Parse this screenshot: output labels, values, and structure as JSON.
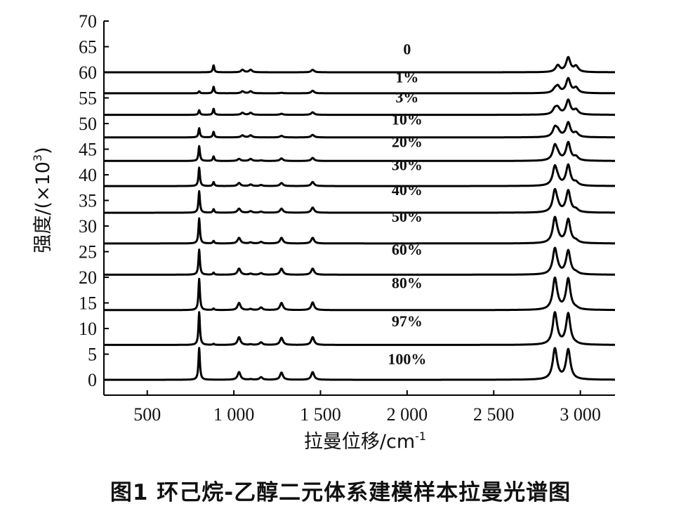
{
  "figure_caption": "图1   环己烷-乙醇二元体系建模样本拉曼光谱图",
  "chart_data": {
    "type": "line",
    "xlabel_main": "拉曼位移/cm",
    "xlabel_sup": "-1",
    "ylabel_main": "强度/(×10",
    "ylabel_sup": "3",
    "ylabel_close": ")",
    "xlim": [
      250,
      3200
    ],
    "ylim": [
      -3,
      70
    ],
    "x_ticks": [
      500,
      1000,
      1500,
      2000,
      2500,
      3000
    ],
    "x_tick_labels": [
      "500",
      "1 000",
      "1 500",
      "2 000",
      "2 500",
      "3 000"
    ],
    "y_ticks": [
      0,
      5,
      10,
      15,
      20,
      25,
      30,
      35,
      40,
      45,
      50,
      55,
      60,
      65,
      70
    ],
    "y_tick_labels": [
      "0",
      "5",
      "10",
      "15",
      "20",
      "25",
      "30",
      "35",
      "40",
      "45",
      "50",
      "55",
      "60",
      "65",
      "70"
    ],
    "series": [
      {
        "name": "0",
        "baseline": 60.0,
        "label_x": 2000,
        "label_y": 63.5,
        "peaks": [
          [
            800,
            0.0
          ],
          [
            883,
            1.4
          ],
          [
            1050,
            0.5
          ],
          [
            1097,
            0.5
          ],
          [
            1275,
            0.0
          ],
          [
            1455,
            0.5
          ],
          [
            2870,
            1.3
          ],
          [
            2930,
            2.8
          ],
          [
            2975,
            1.1
          ]
        ]
      },
      {
        "name": "1%",
        "baseline": 55.9,
        "label_x": 2000,
        "label_y": 58.0,
        "peaks": [
          [
            800,
            0.4
          ],
          [
            883,
            1.3
          ],
          [
            1050,
            0.4
          ],
          [
            1097,
            0.4
          ],
          [
            1275,
            0.1
          ],
          [
            1455,
            0.5
          ],
          [
            2853,
            0.6
          ],
          [
            2870,
            1.2
          ],
          [
            2930,
            2.8
          ],
          [
            2975,
            1.0
          ]
        ]
      },
      {
        "name": "3%",
        "baseline": 51.7,
        "label_x": 2000,
        "label_y": 54.1,
        "peaks": [
          [
            800,
            0.9
          ],
          [
            883,
            1.2
          ],
          [
            1050,
            0.4
          ],
          [
            1097,
            0.4
          ],
          [
            1275,
            0.2
          ],
          [
            1455,
            0.5
          ],
          [
            2853,
            1.0
          ],
          [
            2870,
            1.1
          ],
          [
            2930,
            2.8
          ],
          [
            2975,
            0.9
          ]
        ]
      },
      {
        "name": "10%",
        "baseline": 47.3,
        "label_x": 2000,
        "label_y": 49.8,
        "peaks": [
          [
            800,
            1.8
          ],
          [
            883,
            1.1
          ],
          [
            1050,
            0.4
          ],
          [
            1097,
            0.4
          ],
          [
            1275,
            0.3
          ],
          [
            1455,
            0.5
          ],
          [
            2853,
            1.7
          ],
          [
            2870,
            1.0
          ],
          [
            2930,
            2.8
          ],
          [
            2975,
            0.8
          ]
        ]
      },
      {
        "name": "20%",
        "baseline": 42.7,
        "label_x": 2000,
        "label_y": 45.4,
        "peaks": [
          [
            800,
            2.9
          ],
          [
            883,
            0.9
          ],
          [
            1030,
            0.4
          ],
          [
            1097,
            0.4
          ],
          [
            1157,
            0.1
          ],
          [
            1275,
            0.5
          ],
          [
            1455,
            0.6
          ],
          [
            2853,
            2.8
          ],
          [
            2870,
            0.8
          ],
          [
            2930,
            3.5
          ],
          [
            2975,
            0.7
          ]
        ]
      },
      {
        "name": "30%",
        "baseline": 37.8,
        "label_x": 2000,
        "label_y": 40.9,
        "peaks": [
          [
            800,
            3.6
          ],
          [
            883,
            0.8
          ],
          [
            1030,
            0.6
          ],
          [
            1097,
            0.3
          ],
          [
            1157,
            0.2
          ],
          [
            1275,
            0.6
          ],
          [
            1455,
            0.8
          ],
          [
            2853,
            3.6
          ],
          [
            2870,
            0.7
          ],
          [
            2930,
            4.0
          ],
          [
            2975,
            0.6
          ]
        ]
      },
      {
        "name": "40%",
        "baseline": 32.6,
        "label_x": 2000,
        "label_y": 36.0,
        "peaks": [
          [
            800,
            4.2
          ],
          [
            883,
            0.7
          ],
          [
            1030,
            0.8
          ],
          [
            1097,
            0.3
          ],
          [
            1157,
            0.2
          ],
          [
            1275,
            0.8
          ],
          [
            1455,
            1.0
          ],
          [
            2853,
            4.2
          ],
          [
            2870,
            0.6
          ],
          [
            2930,
            4.2
          ],
          [
            2975,
            0.5
          ]
        ]
      },
      {
        "name": "50%",
        "baseline": 26.6,
        "label_x": 2000,
        "label_y": 30.8,
        "peaks": [
          [
            800,
            4.9
          ],
          [
            883,
            0.5
          ],
          [
            1030,
            1.1
          ],
          [
            1097,
            0.2
          ],
          [
            1157,
            0.3
          ],
          [
            1275,
            1.1
          ],
          [
            1455,
            1.1
          ],
          [
            2853,
            4.8
          ],
          [
            2870,
            0.5
          ],
          [
            2930,
            4.6
          ],
          [
            2975,
            0.4
          ]
        ]
      },
      {
        "name": "60%",
        "baseline": 20.5,
        "label_x": 2000,
        "label_y": 24.4,
        "peaks": [
          [
            800,
            4.9
          ],
          [
            883,
            0.4
          ],
          [
            1030,
            1.2
          ],
          [
            1097,
            0.2
          ],
          [
            1157,
            0.3
          ],
          [
            1275,
            1.2
          ],
          [
            1455,
            1.2
          ],
          [
            2853,
            4.9
          ],
          [
            2870,
            0.4
          ],
          [
            2930,
            4.6
          ],
          [
            2975,
            0.3
          ]
        ]
      },
      {
        "name": "80%",
        "baseline": 13.6,
        "label_x": 2000,
        "label_y": 17.9,
        "peaks": [
          [
            800,
            6.1
          ],
          [
            883,
            0.3
          ],
          [
            1030,
            1.4
          ],
          [
            1097,
            0.2
          ],
          [
            1157,
            0.5
          ],
          [
            1275,
            1.4
          ],
          [
            1455,
            1.5
          ],
          [
            2853,
            6.0
          ],
          [
            2870,
            0.3
          ],
          [
            2930,
            6.0
          ],
          [
            2975,
            0.2
          ]
        ]
      },
      {
        "name": "97%",
        "baseline": 6.8,
        "label_x": 2000,
        "label_y": 10.4,
        "peaks": [
          [
            800,
            6.4
          ],
          [
            883,
            0.2
          ],
          [
            1030,
            1.5
          ],
          [
            1097,
            0.1
          ],
          [
            1157,
            0.5
          ],
          [
            1275,
            1.4
          ],
          [
            1455,
            1.5
          ],
          [
            2853,
            6.1
          ],
          [
            2870,
            0.2
          ],
          [
            2930,
            6.0
          ],
          [
            2975,
            0.1
          ]
        ]
      },
      {
        "name": "100%",
        "baseline": 0.0,
        "label_x": 2000,
        "label_y": 3.0,
        "peaks": [
          [
            800,
            6.2
          ],
          [
            883,
            0.0
          ],
          [
            1030,
            1.5
          ],
          [
            1097,
            0.1
          ],
          [
            1157,
            0.5
          ],
          [
            1275,
            1.4
          ],
          [
            1455,
            1.5
          ],
          [
            2853,
            5.9
          ],
          [
            2870,
            0.2
          ],
          [
            2930,
            5.8
          ],
          [
            2975,
            0.0
          ]
        ]
      }
    ]
  }
}
